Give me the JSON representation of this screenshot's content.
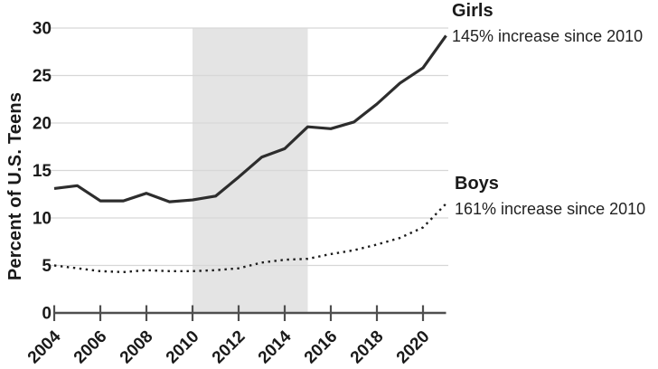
{
  "chart_data": {
    "type": "line",
    "title": "",
    "xlabel": "",
    "ylabel": "Percent of U.S. Teens",
    "x": [
      2004,
      2005,
      2006,
      2007,
      2008,
      2009,
      2010,
      2011,
      2012,
      2013,
      2014,
      2015,
      2016,
      2017,
      2018,
      2019,
      2020,
      2021
    ],
    "series": [
      {
        "name": "Girls",
        "annotation": "145% increase since 2010",
        "style": "solid",
        "color": "#2d2d2d",
        "values": [
          13.1,
          13.4,
          11.8,
          11.8,
          12.6,
          11.7,
          11.9,
          12.3,
          14.3,
          16.4,
          17.3,
          19.6,
          19.4,
          20.1,
          22.0,
          24.2,
          25.8,
          29.2
        ]
      },
      {
        "name": "Boys",
        "annotation": "161% increase since 2010",
        "style": "dotted",
        "color": "#1c1c1c",
        "values": [
          5.0,
          4.7,
          4.4,
          4.3,
          4.5,
          4.4,
          4.4,
          4.5,
          4.7,
          5.3,
          5.6,
          5.7,
          6.2,
          6.6,
          7.2,
          7.9,
          9.0,
          11.5
        ]
      }
    ],
    "x_ticks": [
      2004,
      2006,
      2008,
      2010,
      2012,
      2014,
      2016,
      2018,
      2020
    ],
    "y_ticks": [
      0,
      5,
      10,
      15,
      20,
      25,
      30
    ],
    "xlim": [
      2004,
      2021
    ],
    "ylim": [
      0,
      30
    ],
    "grid": true,
    "legend_position": "right-annotations",
    "shaded_region": {
      "from": 2010,
      "to": 2015,
      "color": "#e4e4e4"
    },
    "grid_color": "#d7d7d7",
    "axis_color": "#4f4f4f",
    "text_color": "#1a1a1a"
  }
}
